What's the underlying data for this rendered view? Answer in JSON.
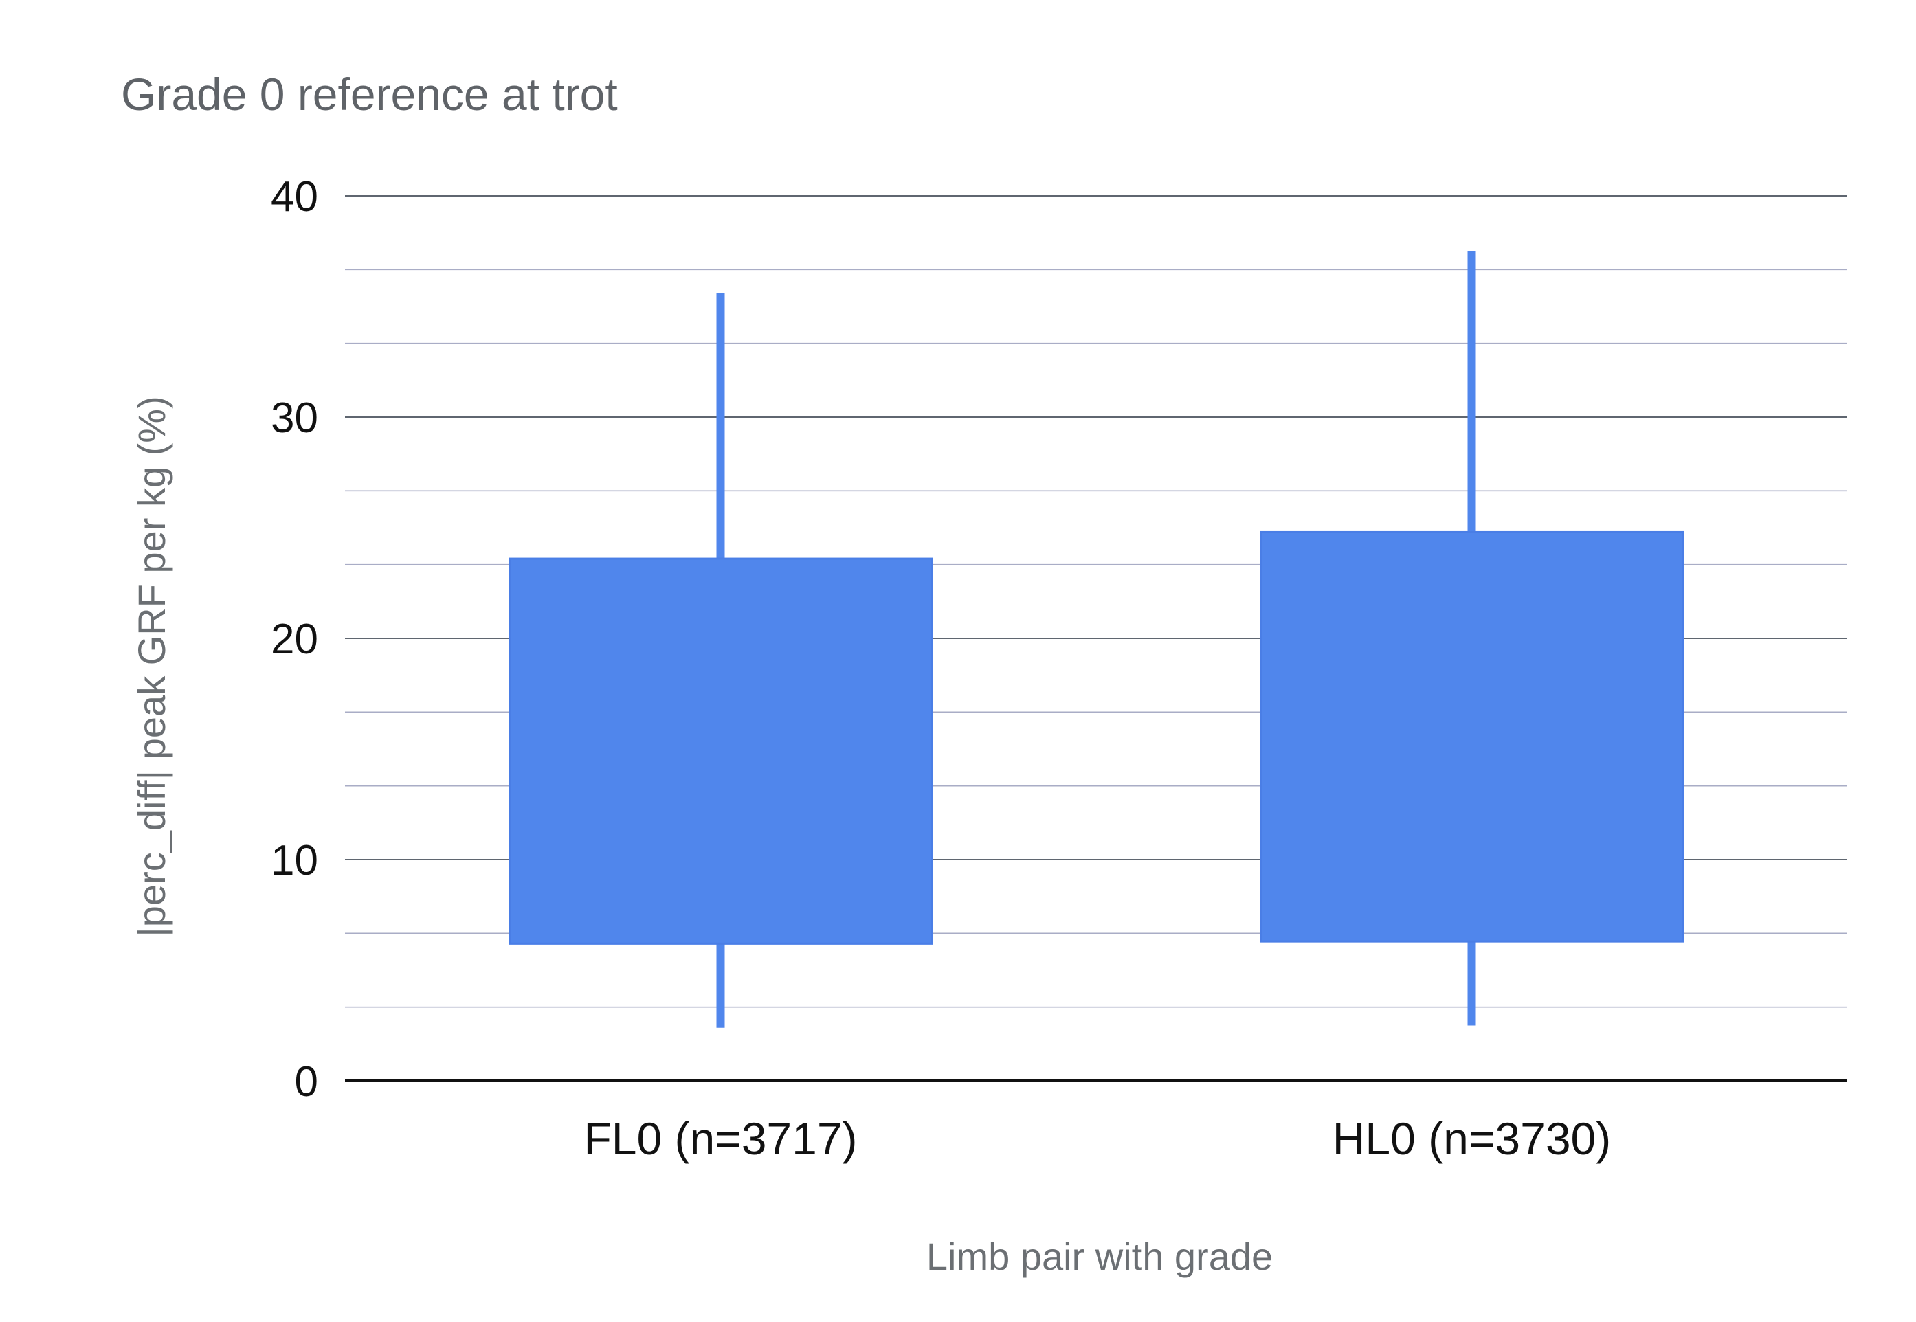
{
  "colors": {
    "box": "#5086ec",
    "box_edge": "#4a7ee6",
    "grid_major": "#5f6670",
    "grid_minor": "#a9adc6",
    "baseline": "#111111"
  },
  "chart_data": {
    "type": "box",
    "title": "Grade 0 reference at trot",
    "xlabel": "Limb pair with grade",
    "ylabel": "|perc_diff| peak GRF per kg (%)",
    "ylim": [
      0,
      40
    ],
    "yticks": [
      "0",
      "10",
      "20",
      "30",
      "40"
    ],
    "minor_gridlines": true,
    "categories": [
      "FL0 (n=3717)",
      "HL0 (n=3730)"
    ],
    "boxes": [
      {
        "category": "FL0 (n=3717)",
        "whisker_low": 2.4,
        "q1": 6.2,
        "q3": 23.6,
        "whisker_high": 35.6
      },
      {
        "category": "HL0 (n=3730)",
        "whisker_low": 2.5,
        "q1": 6.3,
        "q3": 24.8,
        "whisker_high": 37.5
      }
    ]
  }
}
